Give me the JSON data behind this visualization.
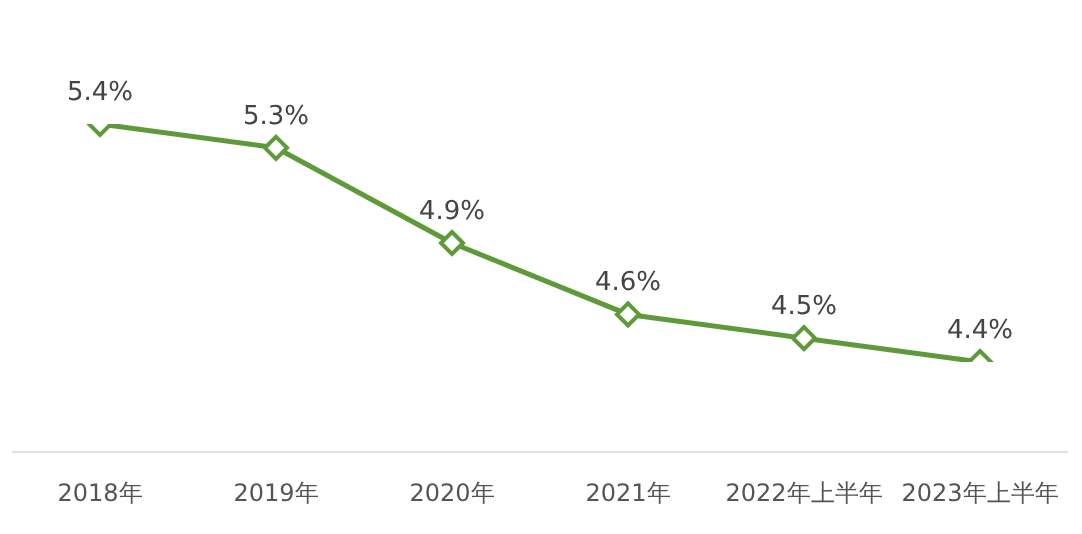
{
  "chart_data": {
    "type": "line",
    "categories": [
      "2018年",
      "2019年",
      "2020年",
      "2021年",
      "2022年上半年",
      "2023年上半年"
    ],
    "series": [
      {
        "color": "#5e9a3a",
        "values": [
          5.4,
          5.3,
          4.9,
          4.6,
          4.5,
          4.4
        ],
        "value_labels": [
          "5.4%",
          "5.3%",
          "4.9%",
          "4.6%",
          "4.5%",
          "4.4%"
        ]
      }
    ],
    "marker": "diamond",
    "line_style": "solid",
    "grid": false,
    "legend": false,
    "tick_labels": "x"
  }
}
